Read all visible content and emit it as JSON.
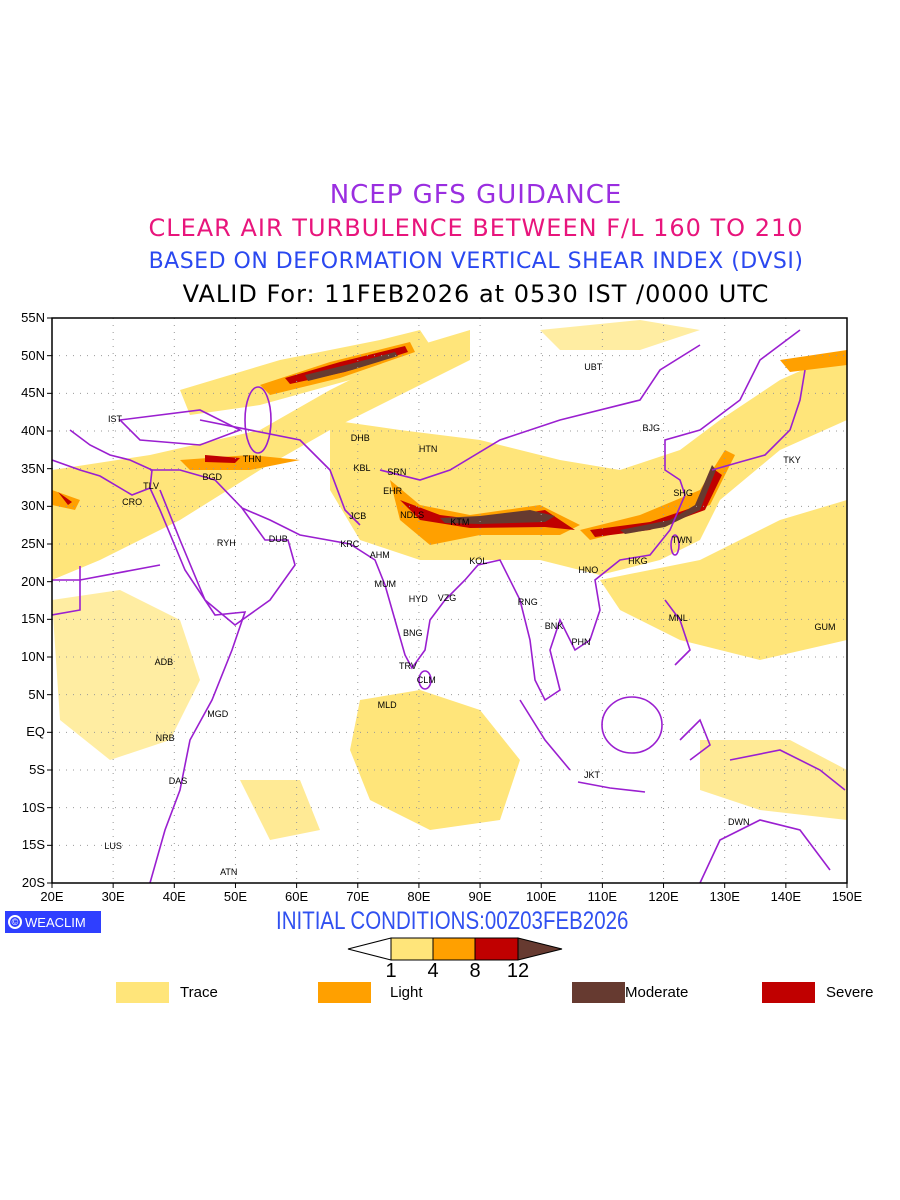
{
  "titles": {
    "line1": "NCEP GFS GUIDANCE",
    "line2": "CLEAR AIR TURBULENCE BETWEEN F/L 160 TO 210",
    "line3": "BASED ON DEFORMATION VERTICAL SHEAR INDEX (DVSI)",
    "line4": "VALID For: 11FEB2026 at 0530 IST /0000 UTC"
  },
  "map": {
    "lon_range": [
      20,
      150
    ],
    "lat_range": [
      -20,
      55
    ],
    "lat_ticks": [
      "55N",
      "50N",
      "45N",
      "40N",
      "35N",
      "30N",
      "25N",
      "20N",
      "15N",
      "10N",
      "5N",
      "EQ",
      "5S",
      "10S",
      "15S",
      "20S"
    ],
    "lon_ticks": [
      "20E",
      "30E",
      "40E",
      "50E",
      "60E",
      "70E",
      "80E",
      "90E",
      "100E",
      "110E",
      "120E",
      "130E",
      "140E",
      "150E"
    ],
    "cities": [
      {
        "code": "IST",
        "lon": 30.3,
        "lat": 41.6
      },
      {
        "code": "DHB",
        "lon": 70.4,
        "lat": 39.1
      },
      {
        "code": "HTN",
        "lon": 81.5,
        "lat": 37.6
      },
      {
        "code": "THN",
        "lon": 52.7,
        "lat": 36.3
      },
      {
        "code": "KBL",
        "lon": 70.7,
        "lat": 35.1
      },
      {
        "code": "SRN",
        "lon": 76.4,
        "lat": 34.5
      },
      {
        "code": "BGD",
        "lon": 46.2,
        "lat": 33.9
      },
      {
        "code": "TLV",
        "lon": 36.2,
        "lat": 32.7
      },
      {
        "code": "CRO",
        "lon": 33.1,
        "lat": 30.6
      },
      {
        "code": "EHR",
        "lon": 75.7,
        "lat": 32.1
      },
      {
        "code": "JCB",
        "lon": 70.0,
        "lat": 28.7
      },
      {
        "code": "NDLS",
        "lon": 78.9,
        "lat": 28.8
      },
      {
        "code": "KTM",
        "lon": 86.7,
        "lat": 27.9
      },
      {
        "code": "UBT",
        "lon": 108.5,
        "lat": 48.5
      },
      {
        "code": "BJG",
        "lon": 118.0,
        "lat": 40.4
      },
      {
        "code": "TKY",
        "lon": 141.0,
        "lat": 36.1
      },
      {
        "code": "SHG",
        "lon": 123.2,
        "lat": 31.8
      },
      {
        "code": "TWN",
        "lon": 123.0,
        "lat": 25.5
      },
      {
        "code": "HKG",
        "lon": 115.8,
        "lat": 22.7
      },
      {
        "code": "HNO",
        "lon": 107.7,
        "lat": 21.5
      },
      {
        "code": "RYH",
        "lon": 48.5,
        "lat": 25.1
      },
      {
        "code": "DUB",
        "lon": 57.0,
        "lat": 25.6
      },
      {
        "code": "KRC",
        "lon": 68.7,
        "lat": 25.0
      },
      {
        "code": "AHM",
        "lon": 73.6,
        "lat": 23.5
      },
      {
        "code": "KOL",
        "lon": 89.7,
        "lat": 22.7
      },
      {
        "code": "MUM",
        "lon": 74.5,
        "lat": 19.7
      },
      {
        "code": "HYD",
        "lon": 79.9,
        "lat": 17.7
      },
      {
        "code": "VZG",
        "lon": 84.6,
        "lat": 17.8
      },
      {
        "code": "RNG",
        "lon": 97.8,
        "lat": 17.3
      },
      {
        "code": "BNK",
        "lon": 102.1,
        "lat": 14.1
      },
      {
        "code": "PHN",
        "lon": 106.5,
        "lat": 12.0
      },
      {
        "code": "MNL",
        "lon": 122.4,
        "lat": 15.2
      },
      {
        "code": "GUM",
        "lon": 146.4,
        "lat": 14.0
      },
      {
        "code": "BNG",
        "lon": 79.0,
        "lat": 13.2
      },
      {
        "code": "TRV",
        "lon": 78.2,
        "lat": 8.8
      },
      {
        "code": "CLM",
        "lon": 81.2,
        "lat": 6.9
      },
      {
        "code": "ADB",
        "lon": 38.3,
        "lat": 9.4
      },
      {
        "code": "MLD",
        "lon": 74.8,
        "lat": 3.6
      },
      {
        "code": "MGD",
        "lon": 47.1,
        "lat": 2.5
      },
      {
        "code": "NRB",
        "lon": 38.5,
        "lat": -0.8
      },
      {
        "code": "DAS",
        "lon": 40.6,
        "lat": -6.4
      },
      {
        "code": "JKT",
        "lon": 108.3,
        "lat": -5.7
      },
      {
        "code": "DWN",
        "lon": 132.3,
        "lat": -11.9
      },
      {
        "code": "LUS",
        "lon": 30.0,
        "lat": -15.1
      },
      {
        "code": "ATN",
        "lon": 48.9,
        "lat": -18.6
      }
    ]
  },
  "footer": {
    "badge": "WEACLIM",
    "badge_symbol": "©",
    "initial_conditions": "INITIAL CONDITIONS:00Z03FEB2026"
  },
  "colorbar": {
    "levels": [
      "1",
      "4",
      "8",
      "12"
    ],
    "colors": {
      "trace": "#FFE57A",
      "light": "#FFA000",
      "severe": "#C00000",
      "moderate": "#663A30"
    }
  },
  "legend": [
    {
      "label": "Trace",
      "color": "#FFE57A"
    },
    {
      "label": "Light",
      "color": "#FFA000"
    },
    {
      "label": "Moderate",
      "color": "#663A30"
    },
    {
      "label": "Severe",
      "color": "#C00000"
    }
  ]
}
